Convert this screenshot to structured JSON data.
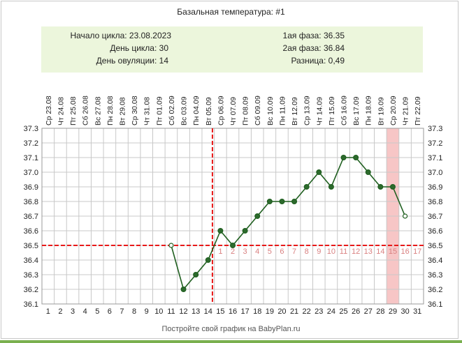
{
  "chart_data": {
    "type": "line",
    "title": "Базальная температура: #1",
    "summary": {
      "cycle_start": "Начало цикла: 23.08.2023",
      "cycle_day": "День цикла: 30",
      "ovulation_day": "День овуляции: 14",
      "phase1": "1ая фаза: 36.35",
      "phase2": "2ая фаза: 36.84",
      "difference": "Разница: 0,49"
    },
    "dates": [
      "Ср 23.08",
      "Чт 24.08",
      "Пт 25.08",
      "Сб 26.08",
      "Вс 27.08",
      "Пн 28.08",
      "Вт 29.08",
      "Ср 30.08",
      "Чт 31.08",
      "Пт 01.09",
      "Сб 02.09",
      "Вс 03.09",
      "Пн 04.09",
      "Вт 05.09",
      "Ср 06.09",
      "Чт 07.09",
      "Пт 08.09",
      "Сб 09.09",
      "Вс 10.09",
      "Пн 11.09",
      "Вт 12.09",
      "Ср 13.09",
      "Чт 14.09",
      "Пт 15.09",
      "Сб 16.09",
      "Вс 17.09",
      "Пн 18.09",
      "Вт 19.09",
      "Ср 20.09",
      "Чт 21.09",
      "Пт 22.09"
    ],
    "cycle_days": [
      "1",
      "2",
      "3",
      "4",
      "5",
      "6",
      "7",
      "8",
      "9",
      "10",
      "11",
      "12",
      "13",
      "14",
      "15",
      "16",
      "17",
      "18",
      "19",
      "20",
      "21",
      "22",
      "23",
      "24",
      "25",
      "26",
      "27",
      "28",
      "29",
      "30",
      "31"
    ],
    "ylim": [
      36.1,
      37.3
    ],
    "y_ticks": [
      "37.3",
      "37.2",
      "37.1",
      "37.0",
      "36.9",
      "36.8",
      "36.7",
      "36.6",
      "36.5",
      "36.4",
      "36.3",
      "36.2",
      "36.1"
    ],
    "series": [
      {
        "points": [
          {
            "day": 11,
            "value": 36.5,
            "hollow": true
          },
          {
            "day": 12,
            "value": 36.2
          },
          {
            "day": 13,
            "value": 36.3
          },
          {
            "day": 14,
            "value": 36.4
          },
          {
            "day": 15,
            "value": 36.6
          },
          {
            "day": 16,
            "value": 36.5
          },
          {
            "day": 17,
            "value": 36.6
          },
          {
            "day": 18,
            "value": 36.7
          },
          {
            "day": 19,
            "value": 36.8
          },
          {
            "day": 20,
            "value": 36.8
          },
          {
            "day": 21,
            "value": 36.8
          },
          {
            "day": 22,
            "value": 36.9
          },
          {
            "day": 23,
            "value": 37.0
          },
          {
            "day": 24,
            "value": 36.9
          },
          {
            "day": 25,
            "value": 37.1
          },
          {
            "day": 26,
            "value": 37.1
          },
          {
            "day": 27,
            "value": 37.0
          },
          {
            "day": 28,
            "value": 36.9
          },
          {
            "day": 29,
            "value": 36.9
          },
          {
            "day": 30,
            "value": 36.7,
            "hollow": true
          }
        ]
      }
    ],
    "coverline_value": 36.5,
    "ovulation_line_after_day": 14,
    "highlight_day": 29,
    "luteal_day_labels": [
      "1",
      "2",
      "3",
      "4",
      "5",
      "6",
      "7",
      "8",
      "9",
      "10",
      "11",
      "12",
      "13",
      "14",
      "15",
      "16",
      "17"
    ],
    "luteal_label_start_day": 15,
    "grid": true,
    "colors": {
      "line": "#1f5f1f",
      "point": "#2d6a2d",
      "coverline": "#e81818",
      "highlight": "#f7c6c6",
      "luteal_labels": "#d98080",
      "grid": "#c8c8c8"
    }
  },
  "footer": "Постройте свой график на BabyPlan.ru"
}
